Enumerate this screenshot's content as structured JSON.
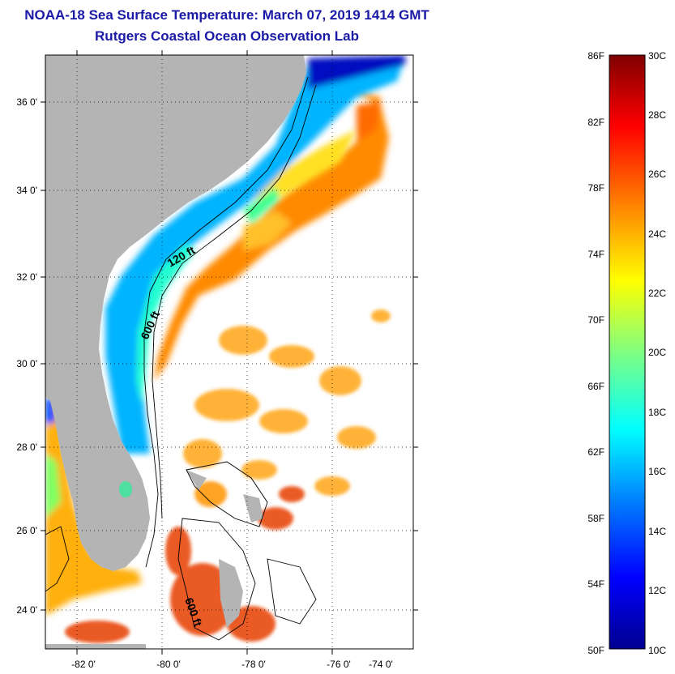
{
  "title": {
    "line1": "NOAA-18 Sea Surface Temperature:  March 07, 2019 1414 GMT",
    "line2": "Rutgers Coastal Ocean Observation Lab"
  },
  "map": {
    "lat_labels": [
      "36 0'",
      "34 0'",
      "32 0'",
      "30 0'",
      "28 0'",
      "26 0'",
      "24 0'"
    ],
    "lon_labels": [
      "-82 0'",
      "-80 0'",
      "-78 0'",
      "-76 0'",
      "-74 0'"
    ],
    "contour_labels": [
      "120 ft",
      "600 ft",
      "600 ft"
    ],
    "land_color": "#b4b4b4",
    "water_missing_color": "#ffffff"
  },
  "colorbar": {
    "fahrenheit_labels": [
      "86F",
      "82F",
      "78F",
      "74F",
      "70F",
      "66F",
      "62F",
      "58F",
      "54F",
      "50F"
    ],
    "celsius_labels": [
      "30C",
      "28C",
      "26C",
      "24C",
      "22C",
      "20C",
      "18C",
      "16C",
      "14C",
      "12C",
      "10C"
    ],
    "colors": [
      "#00008f",
      "#0000ff",
      "#0080ff",
      "#00ffff",
      "#80ff80",
      "#ffff00",
      "#ff8000",
      "#ff0000",
      "#800000"
    ]
  }
}
